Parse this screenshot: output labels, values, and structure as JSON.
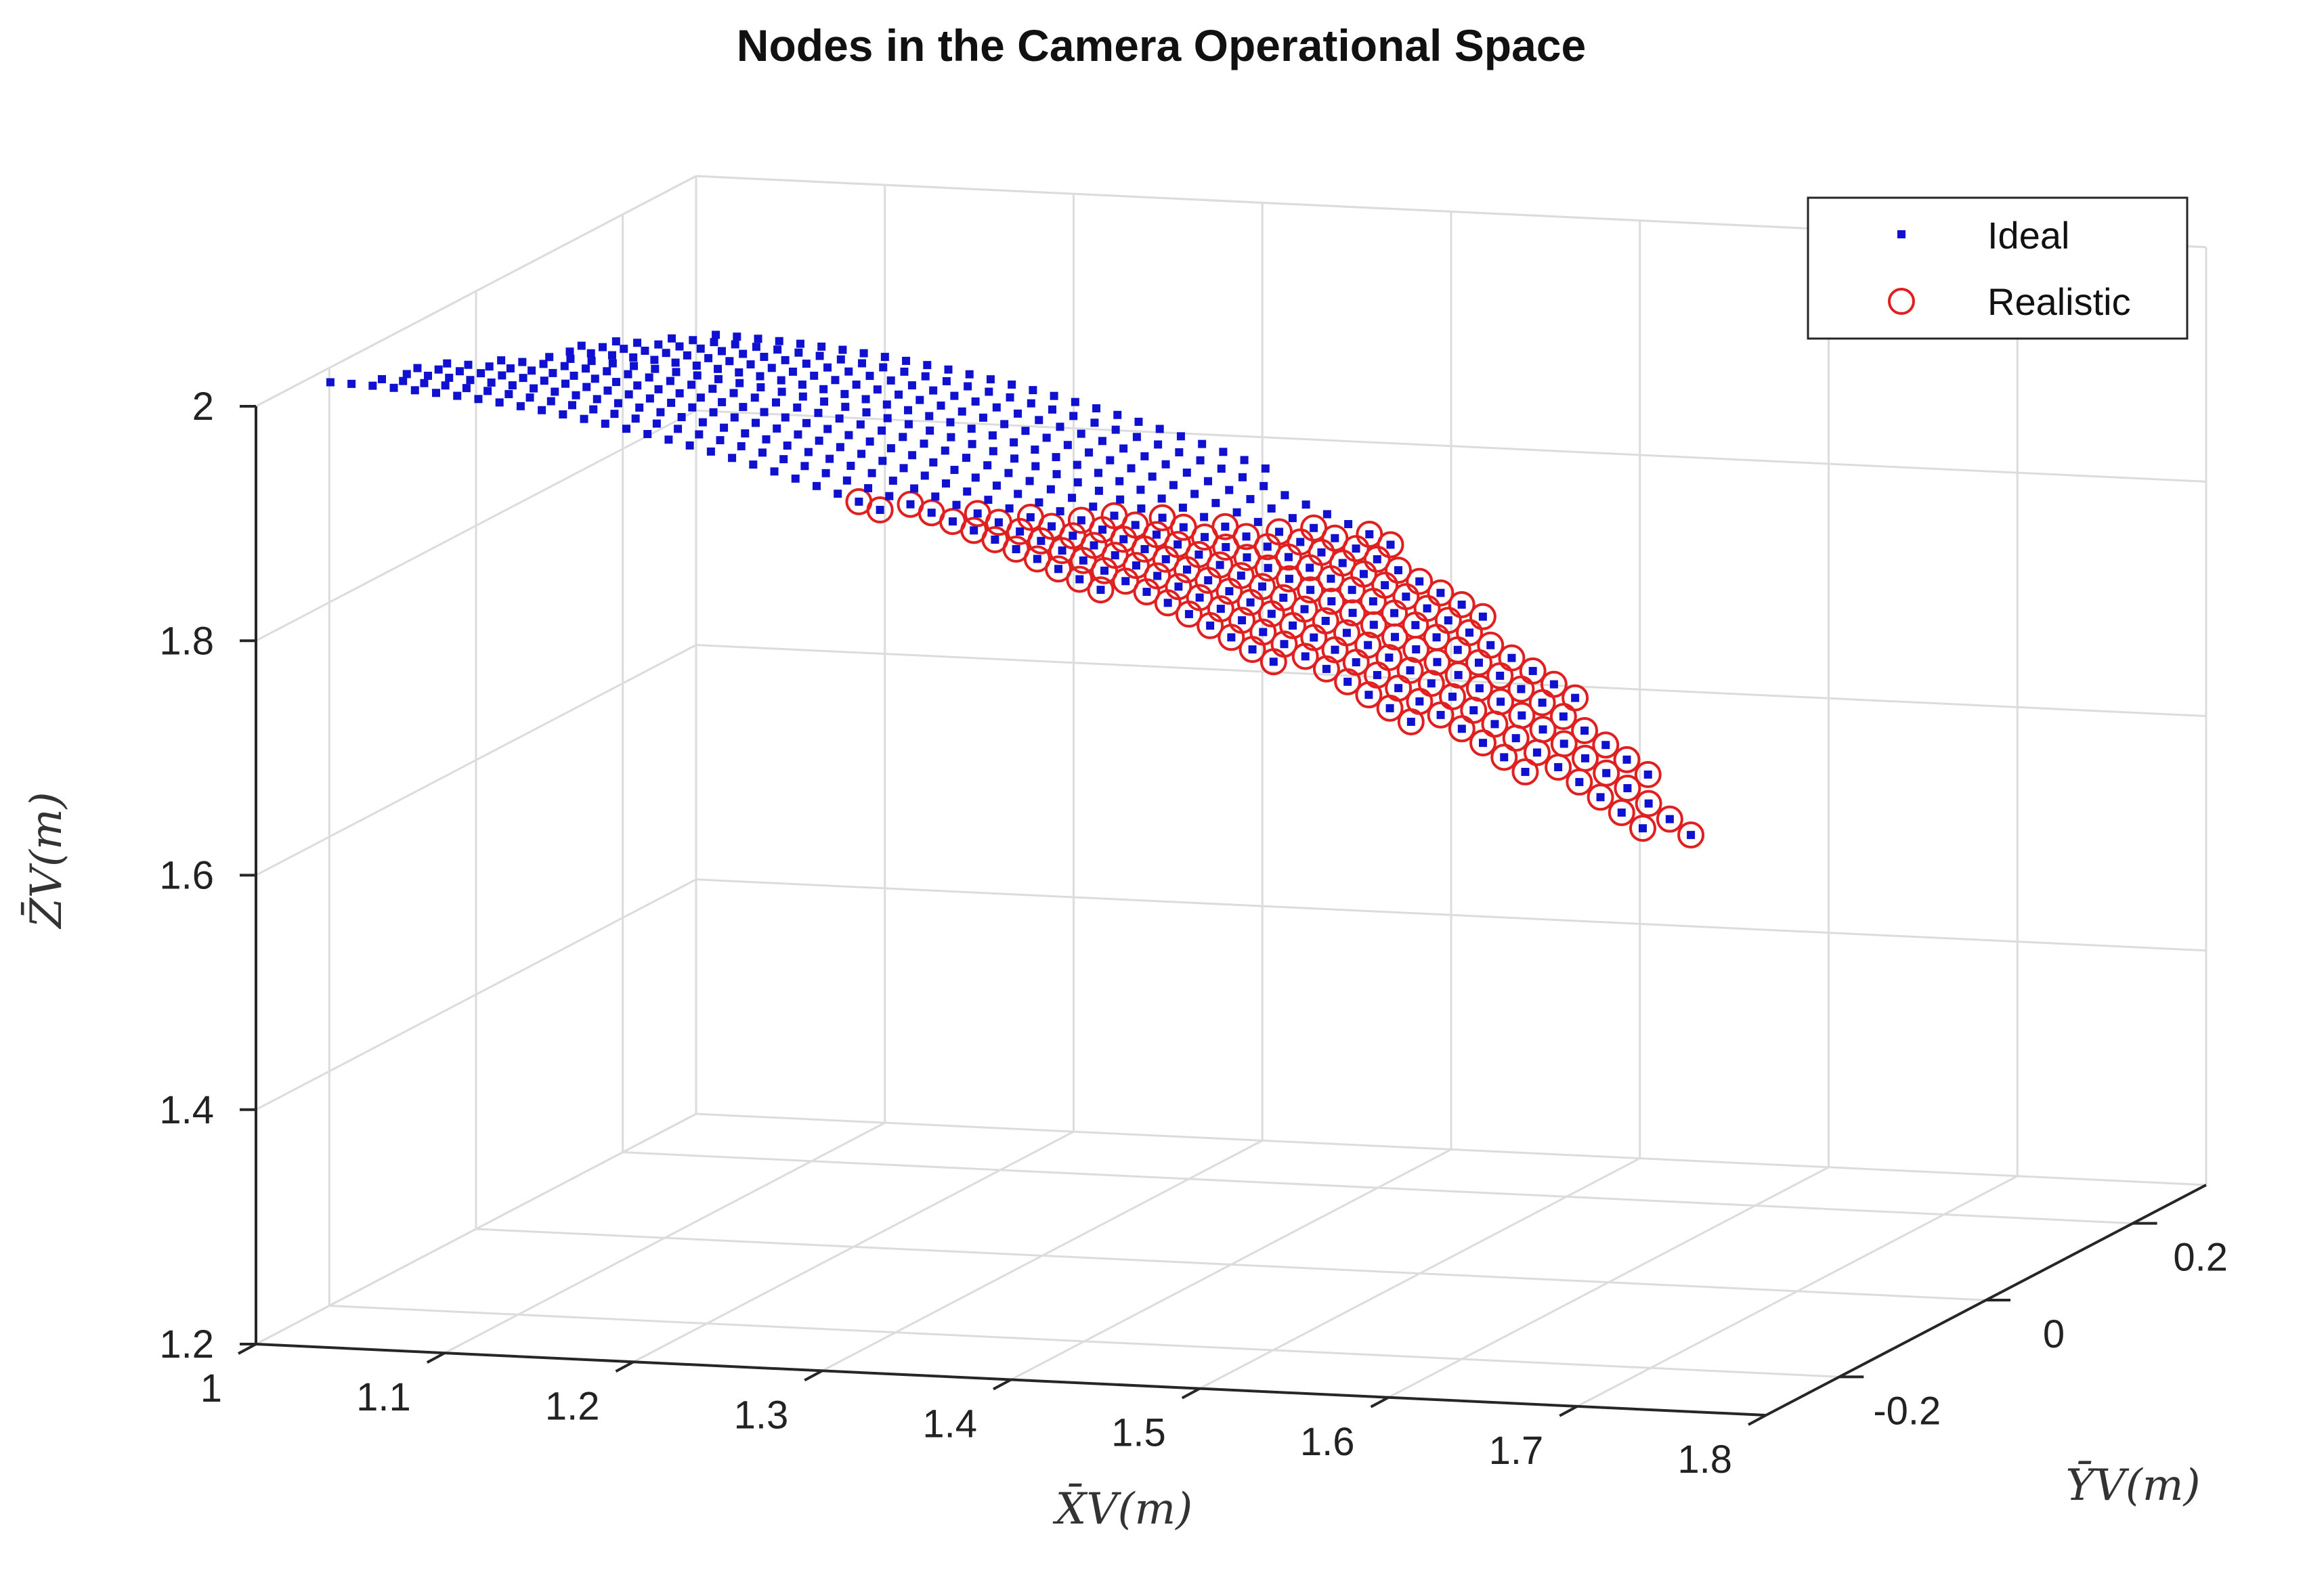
{
  "chart_data": {
    "type": "scatter",
    "title": "Nodes in the Camera Operational Space",
    "xlabel": "X̄V(m)",
    "ylabel": "ȲV(m)",
    "zlabel": "Z̄V(m)",
    "xlim": [
      1,
      1.8
    ],
    "ylim": [
      -0.3,
      0.3
    ],
    "zlim": [
      1.2,
      2.0
    ],
    "x_ticks": [
      "1",
      "1.1",
      "1.2",
      "1.3",
      "1.4",
      "1.5",
      "1.6",
      "1.7",
      "1.8"
    ],
    "y_ticks": [
      "-0.2",
      "0",
      "0.2"
    ],
    "z_ticks": [
      "1.2",
      "1.4",
      "1.6",
      "1.8",
      "2"
    ],
    "legend": {
      "location": "top-right",
      "entries": [
        "Ideal",
        "Realistic"
      ]
    },
    "grid": true,
    "series": [
      {
        "name": "Ideal",
        "marker": "dot",
        "color": "#1010d0",
        "generation": {
          "rows": 12,
          "y_range": [
            -0.25,
            0.25
          ],
          "x_start": 1.02,
          "x_step": 0.0112,
          "z_base": 1.97,
          "z_curve": 0.9,
          "z_y_slope": -0.8,
          "count_min": 27,
          "count_max": 55
        }
      },
      {
        "name": "Realistic",
        "marker": "circle",
        "color": "#e02020",
        "subset_rule": "Ideal nodes with x >= 1.3 (lower rows) up to x >= 1.4 (upper rows)"
      }
    ]
  },
  "colors": {
    "ideal": "#1010d0",
    "realistic": "#e02020"
  }
}
